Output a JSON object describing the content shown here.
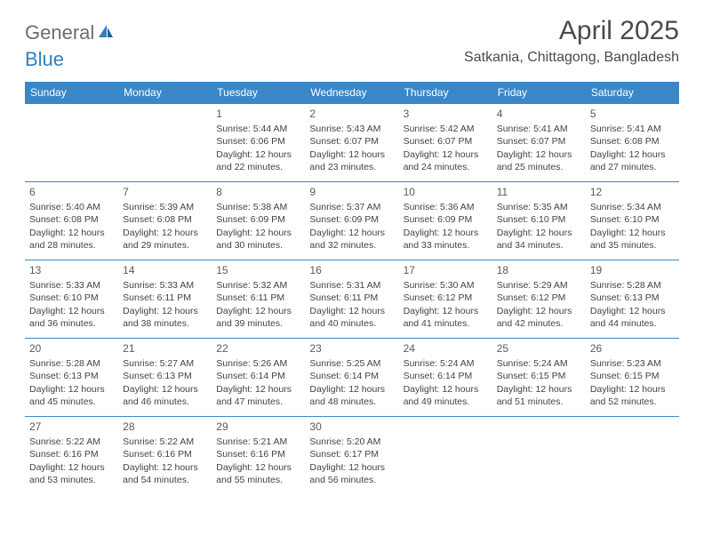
{
  "logo": {
    "part1": "General",
    "part2": "Blue"
  },
  "title": "April 2025",
  "location": "Satkania, Chittagong, Bangladesh",
  "colors": {
    "header_bg": "#3a87c8",
    "header_text": "#ffffff",
    "cell_border": "#3a87c8",
    "body_text": "#434343",
    "logo_gray": "#6d6d6d",
    "logo_blue": "#2f7fc1"
  },
  "weekdays": [
    "Sunday",
    "Monday",
    "Tuesday",
    "Wednesday",
    "Thursday",
    "Friday",
    "Saturday"
  ],
  "weeks": [
    [
      null,
      null,
      {
        "n": "1",
        "sr": "Sunrise: 5:44 AM",
        "ss": "Sunset: 6:06 PM",
        "dl": "Daylight: 12 hours and 22 minutes."
      },
      {
        "n": "2",
        "sr": "Sunrise: 5:43 AM",
        "ss": "Sunset: 6:07 PM",
        "dl": "Daylight: 12 hours and 23 minutes."
      },
      {
        "n": "3",
        "sr": "Sunrise: 5:42 AM",
        "ss": "Sunset: 6:07 PM",
        "dl": "Daylight: 12 hours and 24 minutes."
      },
      {
        "n": "4",
        "sr": "Sunrise: 5:41 AM",
        "ss": "Sunset: 6:07 PM",
        "dl": "Daylight: 12 hours and 25 minutes."
      },
      {
        "n": "5",
        "sr": "Sunrise: 5:41 AM",
        "ss": "Sunset: 6:08 PM",
        "dl": "Daylight: 12 hours and 27 minutes."
      }
    ],
    [
      {
        "n": "6",
        "sr": "Sunrise: 5:40 AM",
        "ss": "Sunset: 6:08 PM",
        "dl": "Daylight: 12 hours and 28 minutes."
      },
      {
        "n": "7",
        "sr": "Sunrise: 5:39 AM",
        "ss": "Sunset: 6:08 PM",
        "dl": "Daylight: 12 hours and 29 minutes."
      },
      {
        "n": "8",
        "sr": "Sunrise: 5:38 AM",
        "ss": "Sunset: 6:09 PM",
        "dl": "Daylight: 12 hours and 30 minutes."
      },
      {
        "n": "9",
        "sr": "Sunrise: 5:37 AM",
        "ss": "Sunset: 6:09 PM",
        "dl": "Daylight: 12 hours and 32 minutes."
      },
      {
        "n": "10",
        "sr": "Sunrise: 5:36 AM",
        "ss": "Sunset: 6:09 PM",
        "dl": "Daylight: 12 hours and 33 minutes."
      },
      {
        "n": "11",
        "sr": "Sunrise: 5:35 AM",
        "ss": "Sunset: 6:10 PM",
        "dl": "Daylight: 12 hours and 34 minutes."
      },
      {
        "n": "12",
        "sr": "Sunrise: 5:34 AM",
        "ss": "Sunset: 6:10 PM",
        "dl": "Daylight: 12 hours and 35 minutes."
      }
    ],
    [
      {
        "n": "13",
        "sr": "Sunrise: 5:33 AM",
        "ss": "Sunset: 6:10 PM",
        "dl": "Daylight: 12 hours and 36 minutes."
      },
      {
        "n": "14",
        "sr": "Sunrise: 5:33 AM",
        "ss": "Sunset: 6:11 PM",
        "dl": "Daylight: 12 hours and 38 minutes."
      },
      {
        "n": "15",
        "sr": "Sunrise: 5:32 AM",
        "ss": "Sunset: 6:11 PM",
        "dl": "Daylight: 12 hours and 39 minutes."
      },
      {
        "n": "16",
        "sr": "Sunrise: 5:31 AM",
        "ss": "Sunset: 6:11 PM",
        "dl": "Daylight: 12 hours and 40 minutes."
      },
      {
        "n": "17",
        "sr": "Sunrise: 5:30 AM",
        "ss": "Sunset: 6:12 PM",
        "dl": "Daylight: 12 hours and 41 minutes."
      },
      {
        "n": "18",
        "sr": "Sunrise: 5:29 AM",
        "ss": "Sunset: 6:12 PM",
        "dl": "Daylight: 12 hours and 42 minutes."
      },
      {
        "n": "19",
        "sr": "Sunrise: 5:28 AM",
        "ss": "Sunset: 6:13 PM",
        "dl": "Daylight: 12 hours and 44 minutes."
      }
    ],
    [
      {
        "n": "20",
        "sr": "Sunrise: 5:28 AM",
        "ss": "Sunset: 6:13 PM",
        "dl": "Daylight: 12 hours and 45 minutes."
      },
      {
        "n": "21",
        "sr": "Sunrise: 5:27 AM",
        "ss": "Sunset: 6:13 PM",
        "dl": "Daylight: 12 hours and 46 minutes."
      },
      {
        "n": "22",
        "sr": "Sunrise: 5:26 AM",
        "ss": "Sunset: 6:14 PM",
        "dl": "Daylight: 12 hours and 47 minutes."
      },
      {
        "n": "23",
        "sr": "Sunrise: 5:25 AM",
        "ss": "Sunset: 6:14 PM",
        "dl": "Daylight: 12 hours and 48 minutes."
      },
      {
        "n": "24",
        "sr": "Sunrise: 5:24 AM",
        "ss": "Sunset: 6:14 PM",
        "dl": "Daylight: 12 hours and 49 minutes."
      },
      {
        "n": "25",
        "sr": "Sunrise: 5:24 AM",
        "ss": "Sunset: 6:15 PM",
        "dl": "Daylight: 12 hours and 51 minutes."
      },
      {
        "n": "26",
        "sr": "Sunrise: 5:23 AM",
        "ss": "Sunset: 6:15 PM",
        "dl": "Daylight: 12 hours and 52 minutes."
      }
    ],
    [
      {
        "n": "27",
        "sr": "Sunrise: 5:22 AM",
        "ss": "Sunset: 6:16 PM",
        "dl": "Daylight: 12 hours and 53 minutes."
      },
      {
        "n": "28",
        "sr": "Sunrise: 5:22 AM",
        "ss": "Sunset: 6:16 PM",
        "dl": "Daylight: 12 hours and 54 minutes."
      },
      {
        "n": "29",
        "sr": "Sunrise: 5:21 AM",
        "ss": "Sunset: 6:16 PM",
        "dl": "Daylight: 12 hours and 55 minutes."
      },
      {
        "n": "30",
        "sr": "Sunrise: 5:20 AM",
        "ss": "Sunset: 6:17 PM",
        "dl": "Daylight: 12 hours and 56 minutes."
      },
      null,
      null,
      null
    ]
  ]
}
